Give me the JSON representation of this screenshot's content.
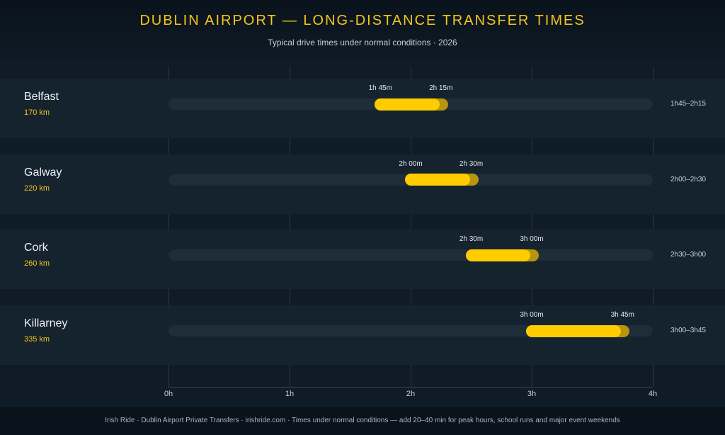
{
  "header": {
    "title": "DUBLIN AIRPORT — LONG-DISTANCE TRANSFER TIMES",
    "subtitle": "Typical drive times under normal conditions · 2026"
  },
  "footer": {
    "text": "Irish Ride · Dublin Airport Private Transfers · irishride.com · Times under normal conditions — add 20–40 min for peak hours, school runs and major event weekends"
  },
  "colors": {
    "accent": "#ffcc00",
    "background": "#0c1822"
  },
  "chart_data": {
    "type": "bar",
    "orientation": "horizontal-range",
    "title": "DUBLIN AIRPORT — LONG-DISTANCE TRANSFER TIMES",
    "subtitle": "Typical drive times under normal conditions · 2026",
    "xlim": [
      0,
      4
    ],
    "x_unit": "hours",
    "grid": true,
    "xticks": [
      "0h",
      "1h",
      "2h",
      "3h",
      "4h"
    ],
    "rows": [
      {
        "name": "Belfast",
        "distance": "170 km",
        "min": 1.75,
        "max": 2.25,
        "min_label": "1h 45m",
        "max_label": "2h 15m",
        "range_label": "1h45–2h15"
      },
      {
        "name": "Galway",
        "distance": "220 km",
        "min": 2.0,
        "max": 2.5,
        "min_label": "2h 00m",
        "max_label": "2h 30m",
        "range_label": "2h00–2h30"
      },
      {
        "name": "Cork",
        "distance": "260 km",
        "min": 2.5,
        "max": 3.0,
        "min_label": "2h 30m",
        "max_label": "3h 00m",
        "range_label": "2h30–3h00"
      },
      {
        "name": "Killarney",
        "distance": "335 km",
        "min": 3.0,
        "max": 3.75,
        "min_label": "3h 00m",
        "max_label": "3h 45m",
        "range_label": "3h00–3h45"
      }
    ]
  }
}
